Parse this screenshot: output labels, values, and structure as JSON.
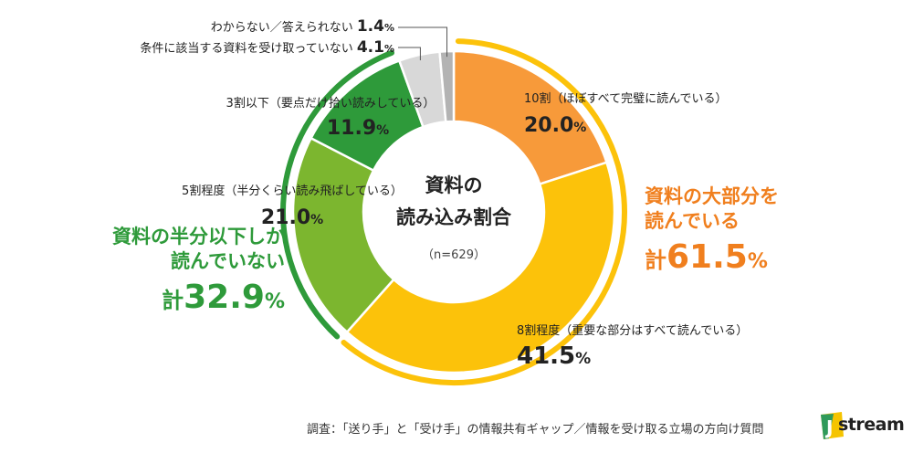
{
  "chart_data": {
    "type": "donut",
    "center_title": [
      "資料の",
      "読み込み割合"
    ],
    "center_note": "（n=629）",
    "slices": [
      {
        "label": "10割（ほぼすべて完璧に読んでいる）",
        "value": 20.0,
        "display": "20.0",
        "unit": "%",
        "color": "#f79a3a"
      },
      {
        "label": "8割程度（重要な部分はすべて読んでいる）",
        "value": 41.5,
        "display": "41.5",
        "unit": "%",
        "color": "#fcc20a"
      },
      {
        "label": "5割程度（半分くらい読み飛ばしている）",
        "value": 21.0,
        "display": "21.0",
        "unit": "%",
        "color": "#7cb62f"
      },
      {
        "label": "3割以下（要点だけ拾い読みしている）",
        "value": 11.9,
        "display": "11.9",
        "unit": "%",
        "color": "#2e9a3a"
      },
      {
        "label": "条件に該当する資料を受け取っていない",
        "value": 4.1,
        "display": "4.1",
        "unit": "%",
        "color": "#d8d8d8"
      },
      {
        "label": "わからない／答えられない",
        "value": 1.4,
        "display": "1.4",
        "unit": "%",
        "color": "#b3b3b3"
      }
    ],
    "groups": [
      {
        "lines": [
          "資料の大部分を",
          "読んでいる"
        ],
        "prefix": "計",
        "total": "61.5",
        "unit": "%",
        "color": "#f07f1e",
        "arc_color": "#fcc20a"
      },
      {
        "lines": [
          "資料の半分以下しか",
          "読んでいない"
        ],
        "prefix": "計",
        "total": "32.9",
        "unit": "%",
        "color": "#2e9a3a",
        "arc_color": "#2e9a3a"
      }
    ]
  },
  "footer": {
    "source": "調査：「送り手」と「受け手」の情報共有ギャップ／情報を受け取る立場の方向け質問",
    "logo_text": "stream"
  }
}
